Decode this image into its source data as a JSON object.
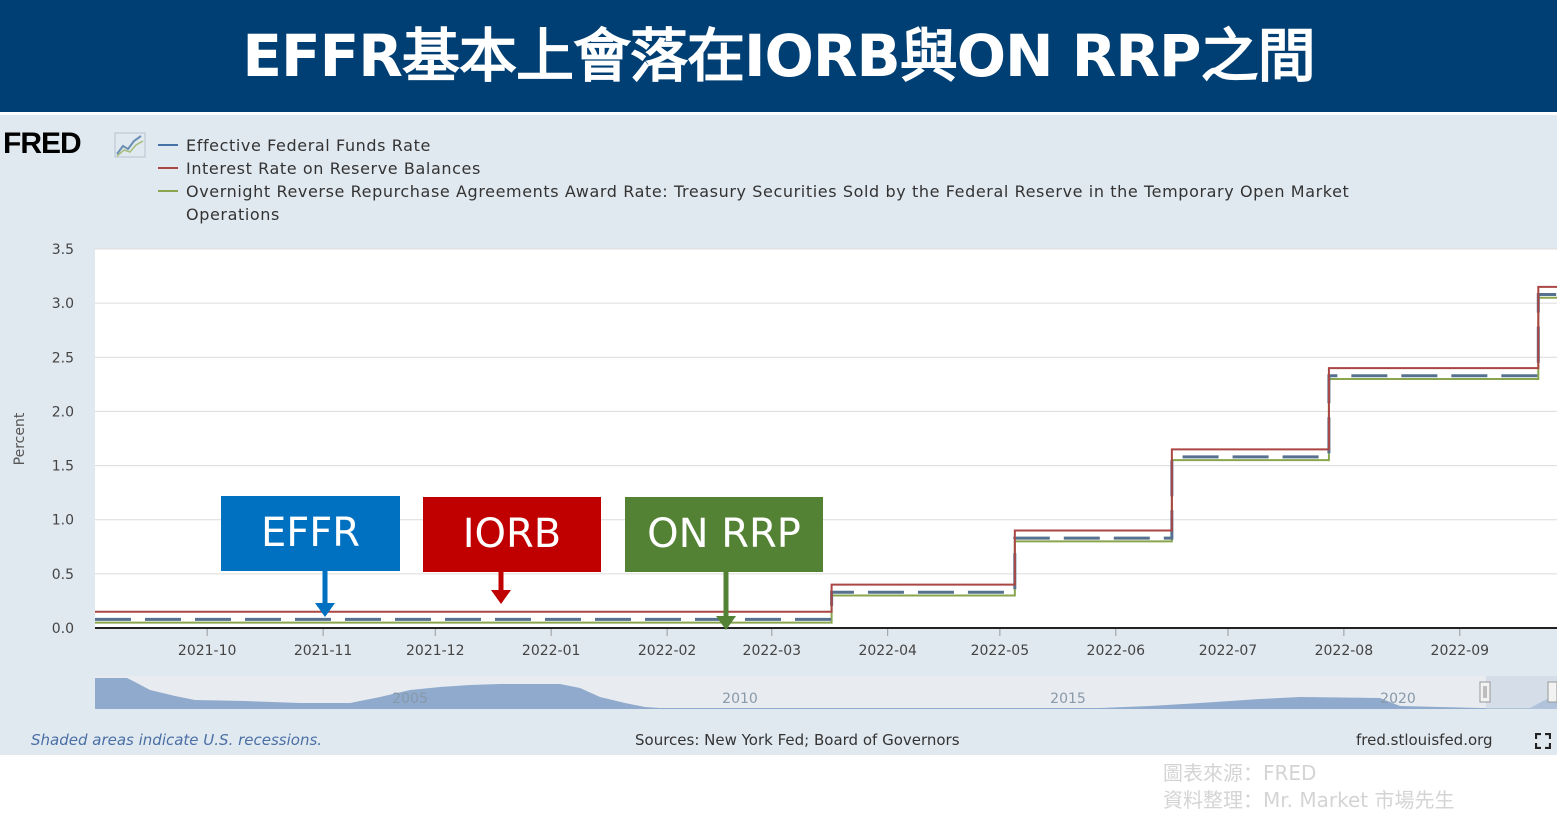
{
  "banner": {
    "title": "EFFR基本上會落在IORB與ON RRP之間",
    "bg_color": "#003f73"
  },
  "fred": {
    "logo_text": "FRED",
    "logo_icon": "chart-line-icon",
    "footer_recessions": "Shaded areas indicate U.S. recessions.",
    "footer_sources": "Sources: New York Fed; Board of Governors",
    "footer_site": "fred.stlouisfed.org",
    "fullscreen_icon": "fullscreen-icon"
  },
  "credits": {
    "line1": "圖表來源：FRED",
    "line2": "資料整理：Mr. Market 市場先生"
  },
  "annotations": [
    {
      "label": "EFFR",
      "color": "#0070c0"
    },
    {
      "label": "IORB",
      "color": "#c00000"
    },
    {
      "label": "ON RRP",
      "color": "#548235"
    }
  ],
  "chart_data": {
    "type": "line",
    "title": "",
    "xlabel": "",
    "ylabel": "Percent",
    "ylim": [
      0,
      3.5
    ],
    "xlim": [
      "2021-09-01",
      "2022-09-27"
    ],
    "yticks": [
      "0.0",
      "0.5",
      "1.0",
      "1.5",
      "2.0",
      "2.5",
      "3.0",
      "3.5"
    ],
    "xticks": [
      "2021-10",
      "2021-11",
      "2021-12",
      "2022-01",
      "2022-02",
      "2022-03",
      "2022-04",
      "2022-05",
      "2022-06",
      "2022-07",
      "2022-08",
      "2022-09"
    ],
    "grid": true,
    "legend_position": "top-left",
    "series": [
      {
        "name": "Effective Federal Funds Rate",
        "color": "#4572a7",
        "style": "dashed",
        "steps": [
          [
            "2021-09-01",
            0.08
          ],
          [
            "2022-03-17",
            0.33
          ],
          [
            "2022-05-05",
            0.83
          ],
          [
            "2022-06-16",
            1.58
          ],
          [
            "2022-07-28",
            2.33
          ],
          [
            "2022-09-22",
            3.08
          ]
        ]
      },
      {
        "name": "Interest Rate on Reserve Balances",
        "color": "#aa4643",
        "style": "solid",
        "steps": [
          [
            "2021-09-01",
            0.15
          ],
          [
            "2022-03-17",
            0.4
          ],
          [
            "2022-05-05",
            0.9
          ],
          [
            "2022-06-16",
            1.65
          ],
          [
            "2022-07-28",
            2.4
          ],
          [
            "2022-09-22",
            3.15
          ]
        ]
      },
      {
        "name": "Overnight Reverse Repurchase Agreements Award Rate: Treasury Securities Sold by the Federal Reserve in the Temporary Open Market Operations",
        "color": "#89a54e",
        "style": "solid",
        "steps": [
          [
            "2021-09-01",
            0.05
          ],
          [
            "2022-03-17",
            0.3
          ],
          [
            "2022-05-05",
            0.8
          ],
          [
            "2022-06-16",
            1.55
          ],
          [
            "2022-07-28",
            2.3
          ],
          [
            "2022-09-22",
            3.05
          ]
        ]
      }
    ],
    "navigator": {
      "labels": [
        "2005",
        "2010",
        "2015",
        "2020"
      ]
    }
  }
}
